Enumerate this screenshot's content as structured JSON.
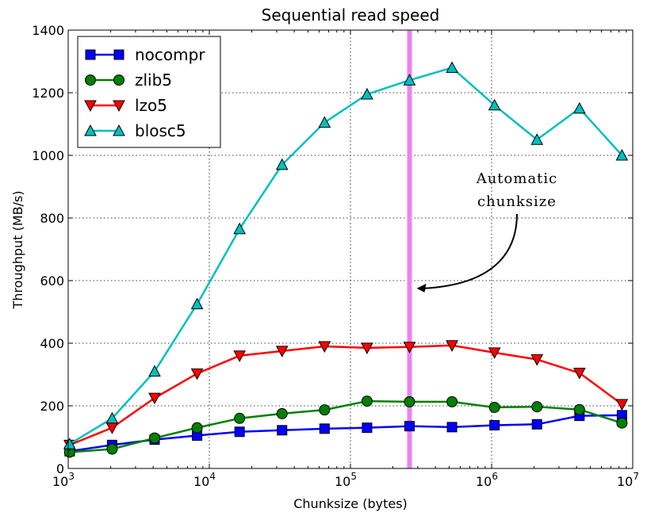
{
  "chart_data": {
    "type": "line",
    "title": "Sequential read speed",
    "xlabel": "Chunksize (bytes)",
    "ylabel": "Throughput (MB/s)",
    "xscale": "log",
    "xlim": [
      1000,
      10000000
    ],
    "ylim": [
      0,
      1400
    ],
    "x_ticks": [
      {
        "value": 1000,
        "base": "10",
        "exp": "3"
      },
      {
        "value": 10000,
        "base": "10",
        "exp": "4"
      },
      {
        "value": 100000,
        "base": "10",
        "exp": "5"
      },
      {
        "value": 1000000,
        "base": "10",
        "exp": "6"
      },
      {
        "value": 10000000,
        "base": "10",
        "exp": "7"
      }
    ],
    "y_ticks": [
      0,
      200,
      400,
      600,
      800,
      1000,
      1200,
      1400
    ],
    "y_tick_labels": [
      "0",
      "200",
      "400",
      "600",
      "800",
      "1000",
      "1200",
      "1400"
    ],
    "grid": true,
    "legend_position": "top-left",
    "x": [
      1024,
      2048,
      4096,
      8192,
      16384,
      32768,
      65536,
      131072,
      262144,
      524288,
      1048576,
      2097152,
      4194304,
      8388608
    ],
    "series": [
      {
        "name": "nocompr",
        "color": "#0000ff",
        "marker": "square",
        "values": [
          55,
          75,
          92,
          105,
          117,
          122,
          127,
          130,
          135,
          132,
          138,
          141,
          168,
          170
        ]
      },
      {
        "name": "zlib5",
        "color": "#008000",
        "marker": "circle",
        "values": [
          52,
          62,
          97,
          130,
          160,
          175,
          187,
          215,
          213,
          213,
          195,
          197,
          188,
          145
        ]
      },
      {
        "name": "lzo5",
        "color": "#ff0000",
        "marker": "triangle-down",
        "values": [
          75,
          130,
          225,
          303,
          360,
          375,
          390,
          385,
          388,
          393,
          370,
          348,
          305,
          205
        ]
      },
      {
        "name": "blosc5",
        "color": "#00bfbf",
        "marker": "triangle-up",
        "values": [
          78,
          160,
          310,
          525,
          765,
          970,
          1105,
          1195,
          1240,
          1280,
          1160,
          1050,
          1150,
          1000
        ]
      }
    ],
    "vertical_line": {
      "x": 262144,
      "color": "#ee82ee"
    },
    "annotation": {
      "lines": [
        "Automatic",
        "chunksize"
      ],
      "arrow_target_y": 575
    }
  }
}
